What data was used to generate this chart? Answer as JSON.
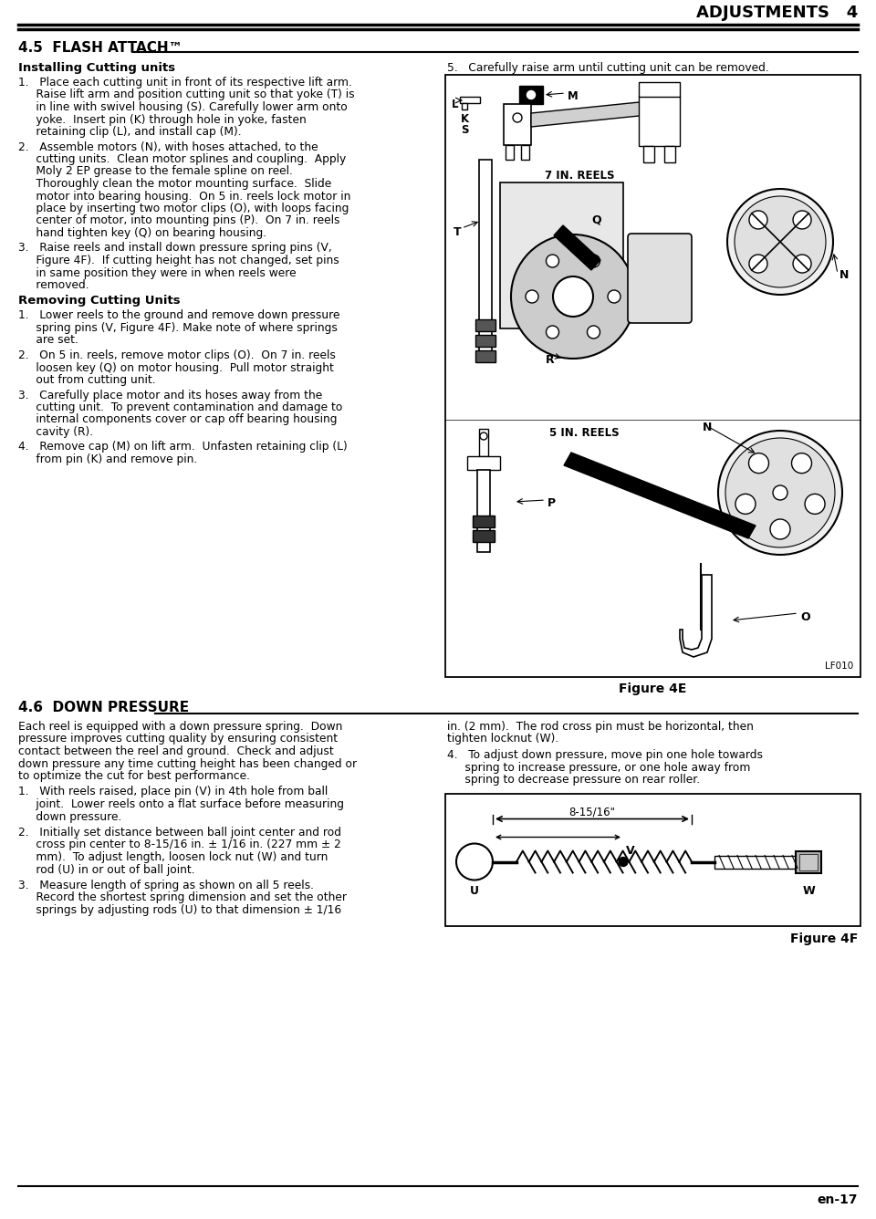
{
  "page_title": "ADJUSTMENTS   4",
  "section45": "4.5  FLASH ATTACH™",
  "sub1": "Installing Cutting units",
  "sub2": "Removing Cutting Units",
  "section46": "4.6  DOWN PRESSURE",
  "fig4e": "Figure 4E",
  "fig4f": "Figure 4F",
  "lf010": "LF010",
  "en17": "en-17",
  "bg": "#ffffff",
  "item1_lines": [
    "1.   Place each cutting unit in front of its respective lift arm.",
    "     Raise lift arm and position cutting unit so that yoke (T) is",
    "     in line with swivel housing (S). Carefully lower arm onto",
    "     yoke.  Insert pin (K) through hole in yoke, fasten",
    "     retaining clip (L), and install cap (M)."
  ],
  "item2_lines": [
    "2.   Assemble motors (N), with hoses attached, to the",
    "     cutting units.  Clean motor splines and coupling.  Apply",
    "     Moly 2 EP grease to the female spline on reel.",
    "     Thoroughly clean the motor mounting surface.  Slide",
    "     motor into bearing housing.  On 5 in. reels lock motor in",
    "     place by inserting two motor clips (O), with loops facing",
    "     center of motor, into mounting pins (P).  On 7 in. reels",
    "     hand tighten key (Q) on bearing housing."
  ],
  "item3_lines": [
    "3.   Raise reels and install down pressure spring pins (V,",
    "     Figure 4F).  If cutting height has not changed, set pins",
    "     in same position they were in when reels were",
    "     removed."
  ],
  "rem1_lines": [
    "1.   Lower reels to the ground and remove down pressure",
    "     spring pins (V, Figure 4F). Make note of where springs",
    "     are set."
  ],
  "rem2_lines": [
    "2.   On 5 in. reels, remove motor clips (O).  On 7 in. reels",
    "     loosen key (Q) on motor housing.  Pull motor straight",
    "     out from cutting unit."
  ],
  "rem3_lines": [
    "3.   Carefully place motor and its hoses away from the",
    "     cutting unit.  To prevent contamination and damage to",
    "     internal components cover or cap off bearing housing",
    "     cavity (R)."
  ],
  "rem4_lines": [
    "4.   Remove cap (M) on lift arm.  Unfasten retaining clip (L)",
    "     from pin (K) and remove pin."
  ],
  "item5": "5.   Carefully raise arm until cutting unit can be removed.",
  "dp_intro": [
    "Each reel is equipped with a down pressure spring.  Down",
    "pressure improves cutting quality by ensuring consistent",
    "contact between the reel and ground.  Check and adjust",
    "down pressure any time cutting height has been changed or",
    "to optimize the cut for best performance."
  ],
  "dp_right1": [
    "in. (2 mm).  The rod cross pin must be horizontal, then",
    "tighten locknut (W)."
  ],
  "dp_item4": [
    "4.   To adjust down pressure, move pin one hole towards",
    "     spring to increase pressure, or one hole away from",
    "     spring to decrease pressure on rear roller."
  ],
  "dp_item1": [
    "1.   With reels raised, place pin (V) in 4th hole from ball",
    "     joint.  Lower reels onto a flat surface before measuring",
    "     down pressure."
  ],
  "dp_item2": [
    "2.   Initially set distance between ball joint center and rod",
    "     cross pin center to 8-15/16 in. ± 1/16 in. (227 mm ± 2",
    "     mm).  To adjust length, loosen lock nut (W) and turn",
    "     rod (U) in or out of ball joint."
  ],
  "dp_item3": [
    "3.   Measure length of spring as shown on all 5 reels.",
    "     Record the shortest spring dimension and set the other",
    "     springs by adjusting rods (U) to that dimension ± 1/16"
  ]
}
